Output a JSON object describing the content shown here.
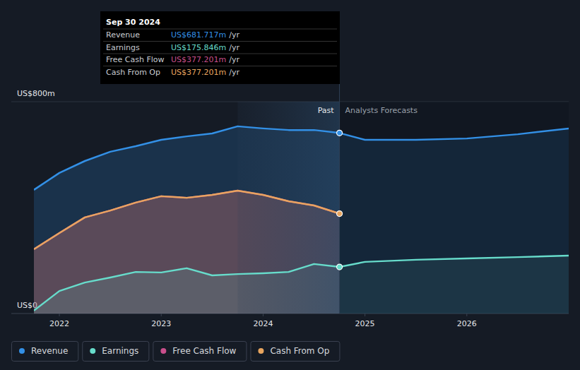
{
  "chart_data": {
    "type": "line",
    "x": [
      2021.75,
      2022.0,
      2022.25,
      2022.5,
      2022.75,
      2023.0,
      2023.25,
      2023.5,
      2023.75,
      2024.0,
      2024.25,
      2024.5,
      2024.75,
      2025.0,
      2025.5,
      2026.0,
      2026.5,
      2027.0
    ],
    "series": [
      {
        "name": "Revenue",
        "color": "#3390e6",
        "values": [
          467,
          531,
          576,
          611,
          632,
          656,
          669,
          680,
          707,
          699,
          693,
          693,
          681.717,
          656,
          656,
          661,
          677,
          699
        ]
      },
      {
        "name": "Earnings",
        "color": "#67dccb",
        "values": [
          11,
          85,
          117,
          136,
          157,
          155,
          171,
          144,
          149,
          152,
          157,
          187,
          175.846,
          195,
          203,
          208,
          213,
          219
        ]
      },
      {
        "name": "Free Cash Flow",
        "color": "#c94f8c",
        "values": [
          243,
          304,
          363,
          389,
          419,
          443,
          437,
          448,
          464,
          448,
          424,
          408,
          377.201,
          null,
          null,
          null,
          null,
          null
        ]
      },
      {
        "name": "Cash From Op",
        "color": "#e8a55f",
        "values": [
          243,
          304,
          363,
          389,
          419,
          443,
          437,
          448,
          464,
          448,
          424,
          408,
          377.201,
          null,
          null,
          null,
          null,
          null
        ]
      }
    ],
    "xlim": [
      2021.75,
      2027.0
    ],
    "xticks": [
      2022,
      2023,
      2024,
      2025,
      2026
    ],
    "ylim": [
      0,
      800
    ],
    "yticks": [
      {
        "value": 0,
        "label": "US$0"
      },
      {
        "value": 800,
        "label": "US$800m"
      }
    ],
    "grid": true,
    "legend": "bottom",
    "annotations": {
      "past": "Past",
      "forecast": "Analysts Forecasts",
      "tooltip": {
        "title": "Sep 30 2024",
        "rows": [
          {
            "label": "Revenue",
            "value": "US$681.717m",
            "unit": "/yr"
          },
          {
            "label": "Earnings",
            "value": "US$175.846m",
            "unit": "/yr"
          },
          {
            "label": "Free Cash Flow",
            "value": "US$377.201m",
            "unit": "/yr"
          },
          {
            "label": "Cash From Op",
            "value": "US$377.201m",
            "unit": "/yr"
          }
        ]
      }
    }
  }
}
